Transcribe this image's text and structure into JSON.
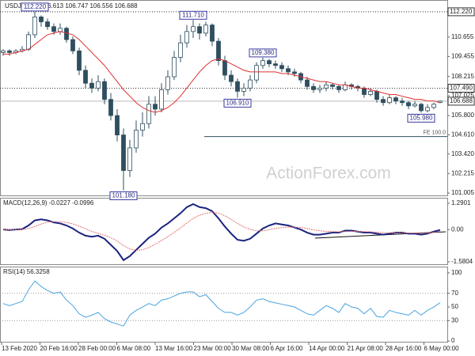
{
  "chart_data": {
    "type": "candlestick",
    "title": "USDJPY,H4  106.613 106.747 106.556 106.688",
    "watermark": "ActionForex.com",
    "ylim": [
      100.86,
      112.9
    ],
    "yticks": [
      110.655,
      109.455,
      108.215,
      107.025,
      {
        "value": 105.8,
        "label": "105.800"
      },
      {
        "value": 104.61,
        "label": "104.610"
      },
      {
        "value": 103.42,
        "label": "103.420"
      },
      102.215,
      101.005
    ],
    "xlabels": [
      "13 Feb 2020",
      "20 Feb 16:00",
      "28 Feb 00:00",
      "6 Mar 08:00",
      "13 Mar 16:00",
      "23 Mar 00:00",
      "30 Mar 08:00",
      "6 Apr 16:00",
      "14 Apr 00:00",
      "21 Apr 08:00",
      "28 Apr 16:00",
      "6 May 00:00"
    ],
    "up_color": "#ffffff",
    "down_color": "#2f4f5f",
    "ohlc": [
      [
        109.7,
        109.9,
        109.5,
        109.8
      ],
      [
        109.8,
        109.9,
        109.5,
        109.7
      ],
      [
        109.7,
        109.9,
        109.6,
        109.8
      ],
      [
        109.8,
        110.1,
        109.7,
        109.9
      ],
      [
        109.9,
        111.0,
        109.8,
        110.8
      ],
      [
        110.8,
        112.22,
        110.6,
        111.9
      ],
      [
        111.9,
        112.0,
        111.3,
        111.6
      ],
      [
        111.6,
        111.8,
        111.1,
        111.3
      ],
      [
        111.3,
        111.5,
        110.8,
        111.0
      ],
      [
        111.0,
        111.5,
        110.8,
        111.2
      ],
      [
        111.2,
        111.3,
        110.3,
        110.5
      ],
      [
        110.5,
        110.7,
        109.6,
        109.8
      ],
      [
        109.8,
        110.0,
        108.3,
        108.6
      ],
      [
        108.6,
        108.9,
        107.5,
        107.8
      ],
      [
        107.8,
        108.1,
        107.2,
        107.5
      ],
      [
        107.5,
        108.3,
        107.3,
        107.9
      ],
      [
        107.9,
        108.1,
        106.5,
        106.8
      ],
      [
        106.8,
        107.2,
        105.5,
        105.8
      ],
      [
        105.8,
        106.2,
        104.2,
        104.6
      ],
      [
        104.6,
        105.0,
        101.18,
        102.4
      ],
      [
        102.4,
        104.3,
        102.0,
        103.8
      ],
      [
        103.8,
        105.5,
        103.5,
        104.9
      ],
      [
        104.9,
        106.0,
        104.5,
        105.3
      ],
      [
        105.3,
        107.0,
        105.0,
        106.5
      ],
      [
        106.5,
        107.0,
        105.8,
        106.2
      ],
      [
        106.2,
        107.8,
        106.0,
        107.4
      ],
      [
        107.4,
        108.6,
        107.1,
        108.2
      ],
      [
        108.2,
        109.8,
        108.0,
        109.4
      ],
      [
        109.4,
        110.8,
        109.1,
        110.3
      ],
      [
        110.3,
        111.4,
        110.0,
        111.0
      ],
      [
        111.0,
        111.71,
        110.6,
        111.3
      ],
      [
        111.3,
        111.5,
        110.5,
        110.9
      ],
      [
        110.9,
        111.6,
        110.7,
        111.4
      ],
      [
        111.4,
        111.5,
        110.1,
        110.4
      ],
      [
        110.4,
        110.6,
        108.9,
        109.2
      ],
      [
        109.2,
        109.5,
        108.0,
        108.3
      ],
      [
        108.3,
        108.6,
        107.6,
        107.9
      ],
      [
        107.9,
        108.1,
        106.91,
        107.3
      ],
      [
        107.3,
        107.8,
        107.0,
        107.5
      ],
      [
        107.5,
        108.3,
        107.3,
        108.0
      ],
      [
        108.0,
        109.1,
        107.8,
        108.9
      ],
      [
        108.9,
        109.38,
        108.7,
        109.2
      ],
      [
        109.2,
        109.3,
        108.8,
        109.0
      ],
      [
        109.0,
        109.2,
        108.7,
        108.9
      ],
      [
        108.9,
        109.1,
        108.5,
        108.7
      ],
      [
        108.7,
        108.9,
        108.3,
        108.5
      ],
      [
        108.5,
        108.7,
        108.2,
        108.4
      ],
      [
        108.4,
        108.5,
        107.8,
        108.0
      ],
      [
        108.0,
        108.2,
        107.4,
        107.6
      ],
      [
        107.6,
        107.8,
        107.2,
        107.4
      ],
      [
        107.4,
        107.7,
        107.2,
        107.5
      ],
      [
        107.5,
        107.9,
        107.3,
        107.7
      ],
      [
        107.7,
        107.8,
        107.4,
        107.6
      ],
      [
        107.6,
        107.7,
        107.2,
        107.4
      ],
      [
        107.4,
        107.9,
        107.3,
        107.7
      ],
      [
        107.7,
        107.8,
        107.4,
        107.6
      ],
      [
        107.6,
        107.7,
        107.3,
        107.5
      ],
      [
        107.5,
        107.6,
        106.9,
        107.1
      ],
      [
        107.1,
        107.5,
        107.0,
        107.3
      ],
      [
        107.3,
        107.4,
        106.6,
        106.8
      ],
      [
        106.8,
        107.0,
        106.4,
        106.6
      ],
      [
        106.6,
        107.1,
        106.5,
        106.9
      ],
      [
        106.9,
        107.0,
        106.5,
        106.7
      ],
      [
        106.7,
        106.9,
        106.4,
        106.6
      ],
      [
        106.6,
        106.7,
        106.2,
        106.4
      ],
      [
        106.4,
        106.7,
        106.3,
        106.5
      ],
      [
        106.5,
        106.6,
        105.98,
        106.1
      ],
      [
        106.1,
        106.5,
        106.0,
        106.3
      ],
      [
        106.3,
        106.6,
        106.2,
        106.5
      ],
      [
        106.613,
        106.747,
        106.556,
        106.688
      ]
    ],
    "ma": {
      "color": "#e03030",
      "values": [
        109.6,
        109.6,
        109.7,
        109.8,
        109.9,
        110.2,
        110.5,
        110.8,
        110.9,
        111.0,
        110.9,
        110.8,
        110.5,
        110.1,
        109.7,
        109.3,
        108.9,
        108.4,
        107.9,
        107.4,
        107.0,
        106.6,
        106.3,
        106.1,
        106.0,
        106.1,
        106.3,
        106.6,
        107.0,
        107.5,
        108.0,
        108.5,
        108.9,
        109.2,
        109.3,
        109.2,
        109.0,
        108.8,
        108.6,
        108.5,
        108.5,
        108.5,
        108.5,
        108.5,
        108.4,
        108.4,
        108.3,
        108.2,
        108.1,
        108.0,
        107.9,
        107.9,
        107.8,
        107.7,
        107.7,
        107.6,
        107.5,
        107.5,
        107.4,
        107.3,
        107.2,
        107.1,
        107.1,
        107.0,
        106.9,
        106.8,
        106.8,
        106.7,
        106.7,
        106.6
      ]
    },
    "annotations": [
      {
        "value": 112.22,
        "label": "112.220"
      },
      {
        "value": 111.71,
        "label": "111.710"
      },
      {
        "value": 109.38,
        "label": "109.380"
      },
      {
        "value": 106.91,
        "label": "106.910"
      },
      {
        "value": 105.98,
        "label": "105.980"
      },
      {
        "value": 101.18,
        "label": "101.180"
      }
    ],
    "levels": [
      {
        "value": 112.22,
        "label": "112.220",
        "style": "dotted"
      },
      {
        "value": 107.49,
        "label": "107.490",
        "style": "dotted"
      },
      {
        "value": 106.688,
        "label": "106.688",
        "style": "solid"
      }
    ],
    "fe": {
      "value": 104.5,
      "label": "FE 100.0"
    },
    "macd": {
      "title": "MACD(12,26,9) -0.0227 -0.0996",
      "ylim": [
        -1.7,
        1.52
      ],
      "yticks": [
        1.2901,
        {
          "value": 0,
          "label": "0.00"
        },
        -1.5804
      ],
      "color": "#1a237e",
      "signal_color": "#e57373",
      "values": [
        0.0,
        -0.02,
        0.0,
        0.02,
        0.2,
        0.45,
        0.5,
        0.45,
        0.35,
        0.3,
        0.2,
        0.05,
        -0.15,
        -0.3,
        -0.35,
        -0.3,
        -0.45,
        -0.75,
        -1.05,
        -1.5,
        -1.3,
        -1.0,
        -0.7,
        -0.4,
        -0.2,
        0.1,
        0.3,
        0.55,
        0.8,
        1.1,
        1.25,
        1.1,
        1.05,
        0.9,
        0.55,
        0.15,
        -0.2,
        -0.5,
        -0.55,
        -0.45,
        -0.2,
        0.05,
        0.2,
        0.3,
        0.25,
        0.2,
        0.1,
        0.0,
        -0.15,
        -0.25,
        -0.25,
        -0.2,
        -0.15,
        -0.15,
        -0.05,
        -0.05,
        -0.1,
        -0.15,
        -0.15,
        -0.2,
        -0.25,
        -0.2,
        -0.15,
        -0.15,
        -0.2,
        -0.2,
        -0.25,
        -0.2,
        -0.1,
        -0.0227
      ],
      "signal": [
        0.0,
        0.0,
        0.0,
        0.0,
        0.05,
        0.15,
        0.27,
        0.36,
        0.39,
        0.38,
        0.35,
        0.28,
        0.17,
        0.04,
        -0.09,
        -0.19,
        -0.28,
        -0.4,
        -0.56,
        -0.79,
        -0.95,
        -1.02,
        -0.99,
        -0.88,
        -0.72,
        -0.54,
        -0.35,
        -0.14,
        0.08,
        0.32,
        0.55,
        0.7,
        0.8,
        0.85,
        0.8,
        0.68,
        0.5,
        0.3,
        0.13,
        0.01,
        -0.06,
        -0.06,
        -0.01,
        0.06,
        0.1,
        0.12,
        0.12,
        0.1,
        0.05,
        -0.01,
        -0.06,
        -0.09,
        -0.1,
        -0.11,
        -0.1,
        -0.09,
        -0.09,
        -0.1,
        -0.11,
        -0.13,
        -0.15,
        -0.16,
        -0.16,
        -0.16,
        -0.17,
        -0.17,
        -0.18,
        -0.17,
        -0.13,
        -0.0996
      ]
    },
    "rsi": {
      "title": "RSI(14) 56.3258",
      "ylim": [
        -1,
        108
      ],
      "yticks": [
        100,
        70,
        50,
        30,
        0
      ],
      "levels": [
        70,
        30
      ],
      "color": "#4aa3df",
      "values": [
        55,
        52,
        55,
        58,
        75,
        88,
        80,
        74,
        70,
        72,
        60,
        52,
        40,
        35,
        38,
        42,
        33,
        28,
        25,
        22,
        38,
        45,
        50,
        55,
        52,
        60,
        62,
        66,
        70,
        72,
        72,
        65,
        68,
        58,
        48,
        42,
        42,
        38,
        42,
        50,
        60,
        62,
        58,
        56,
        54,
        52,
        50,
        45,
        40,
        38,
        45,
        52,
        48,
        42,
        55,
        50,
        48,
        40,
        48,
        36,
        35,
        45,
        42,
        40,
        38,
        45,
        38,
        45,
        50,
        56.3258
      ]
    }
  }
}
